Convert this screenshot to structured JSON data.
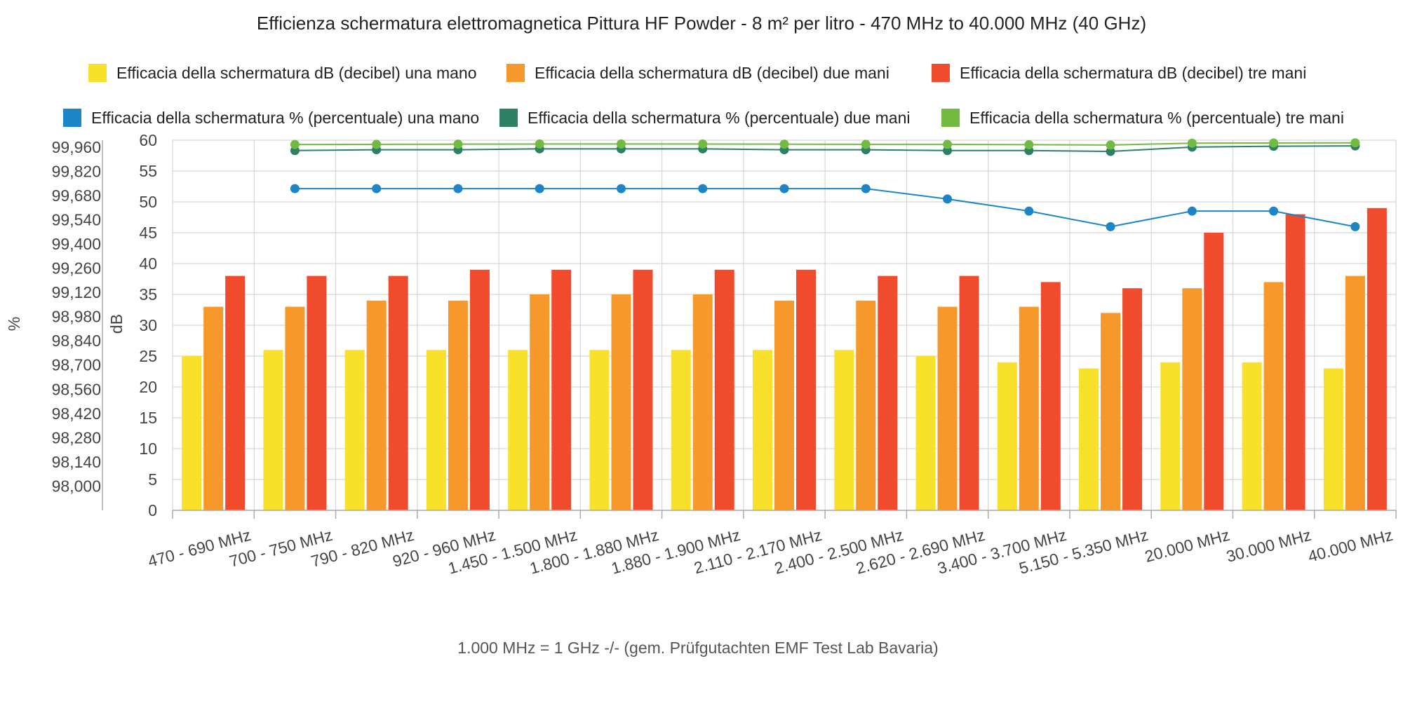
{
  "chart_data": {
    "type": "bar",
    "title": "Efficienza schermatura elettromagnetica Pittura HF Powder - 8 m² per litro - 470 MHz to 40.000 MHz (40 GHz)",
    "xlabel": "1.000 MHz = 1 GHz -/- (gem. Prüfgutachten EMF Test Lab Bavaria)",
    "ylabel_db": "dB",
    "ylabel_pct": "%",
    "ylim_db": [
      0,
      60
    ],
    "yticks_db": [
      "0",
      "5",
      "10",
      "15",
      "20",
      "25",
      "30",
      "35",
      "40",
      "45",
      "50",
      "55",
      "60"
    ],
    "ylim_pct": [
      97.86,
      100.0
    ],
    "yticks_pct": [
      "98,000",
      "98,140",
      "98,280",
      "98,420",
      "98,560",
      "98,700",
      "98,840",
      "98,980",
      "99,120",
      "99,260",
      "99,400",
      "99,540",
      "99,680",
      "99,820",
      "99,960"
    ],
    "yticks_pct_values": [
      98.0,
      98.14,
      98.28,
      98.42,
      98.56,
      98.7,
      98.84,
      98.98,
      99.12,
      99.26,
      99.4,
      99.54,
      99.68,
      99.82,
      99.96
    ],
    "grid": true,
    "legend_position": "top",
    "categories": [
      "470 - 690 MHz",
      "700 - 750 MHz",
      "790 - 820 MHz",
      "920 - 960 MHz",
      "1.450 - 1.500 MHz",
      "1.800 - 1.880 MHz",
      "1.880 - 1.900 MHz",
      "2.110 - 2.170 MHz",
      "2.400 - 2.500 MHz",
      "2.620 - 2.690 MHz",
      "3.400 - 3.700 MHz",
      "5.150 - 5.350 MHz",
      "20.000 MHz",
      "30.000 MHz",
      "40.000 MHz"
    ],
    "bar_series": [
      {
        "name": "Efficacia della schermatura dB (decibel) una mano",
        "color": "#f9e02a",
        "values": [
          25,
          26,
          26,
          26,
          26,
          26,
          26,
          26,
          26,
          25,
          24,
          23,
          24,
          24,
          23
        ]
      },
      {
        "name": "Efficacia della schermatura dB (decibel) due mani",
        "color": "#f7982b",
        "values": [
          33,
          33,
          34,
          34,
          35,
          35,
          35,
          34,
          34,
          33,
          33,
          32,
          36,
          37,
          38
        ]
      },
      {
        "name": "Efficacia della schermatura dB (decibel) tre mani",
        "color": "#ef4b2c",
        "values": [
          38,
          38,
          38,
          39,
          39,
          39,
          39,
          39,
          38,
          38,
          37,
          36,
          45,
          48,
          49
        ]
      }
    ],
    "line_series": [
      {
        "name": "Efficacia della schermatura % (percentuale) una mano",
        "color": "#1b85c8",
        "values": [
          null,
          99.72,
          99.72,
          99.72,
          99.72,
          99.72,
          99.72,
          99.72,
          99.72,
          99.66,
          99.59,
          99.5,
          99.59,
          99.59,
          99.5
        ]
      },
      {
        "name": "Efficacia della schermatura % (percentuale) due mani",
        "color": "#2e8065",
        "values": [
          null,
          99.94,
          99.945,
          99.945,
          99.95,
          99.95,
          99.95,
          99.945,
          99.945,
          99.94,
          99.94,
          99.935,
          99.96,
          99.965,
          99.967
        ]
      },
      {
        "name": "Efficacia della schermatura % (percentuale) tre mani",
        "color": "#72bb42",
        "values": [
          null,
          99.975,
          99.976,
          99.977,
          99.978,
          99.978,
          99.978,
          99.977,
          99.976,
          99.976,
          99.974,
          99.972,
          99.983,
          99.984,
          99.985
        ]
      }
    ]
  }
}
